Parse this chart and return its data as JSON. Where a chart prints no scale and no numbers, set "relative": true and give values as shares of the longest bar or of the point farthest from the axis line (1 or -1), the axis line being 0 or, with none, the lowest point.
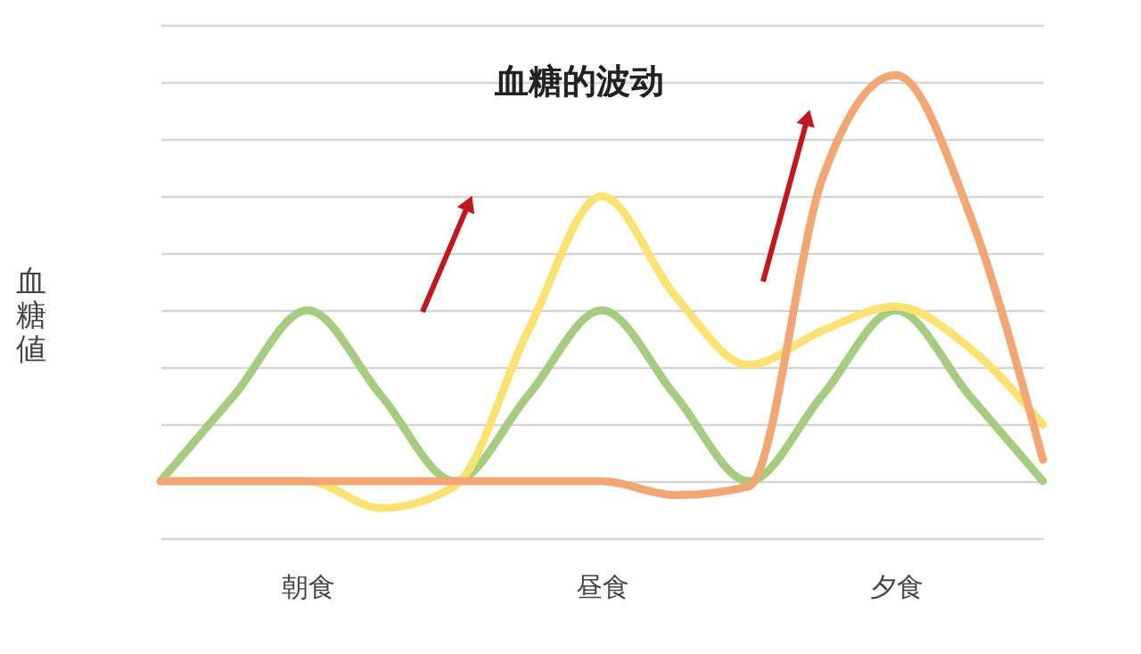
{
  "chart_data": {
    "type": "line",
    "relative": true,
    "ylabel": "血糖値",
    "categories": [
      null,
      null,
      "朝食",
      null,
      null,
      null,
      "昼食",
      null,
      null,
      null,
      "夕食",
      null,
      null
    ],
    "series": [
      {
        "color": "#a5cc80",
        "values": [
          0.123,
          0.308,
          0.492,
          0.308,
          0.123,
          0.308,
          0.492,
          0.308,
          0.123,
          0.308,
          0.492,
          0.308,
          0.123
        ]
      },
      {
        "color": "#fce272",
        "values": [
          0.123,
          0.123,
          0.123,
          0.065,
          0.112,
          0.448,
          0.738,
          0.523,
          0.374,
          0.448,
          0.5,
          0.411,
          0.245
        ]
      },
      {
        "color": "#f1a674",
        "values": [
          0.123,
          0.123,
          0.123,
          0.123,
          0.123,
          0.123,
          0.123,
          0.093,
          0.112,
          0.776,
          1.0,
          0.701,
          0.169
        ]
      }
    ],
    "annotations": [
      "血糖的波动"
    ],
    "grid": "y",
    "tick_labels": "x",
    "legend": false,
    "marker": "none",
    "line_style": "solid"
  }
}
